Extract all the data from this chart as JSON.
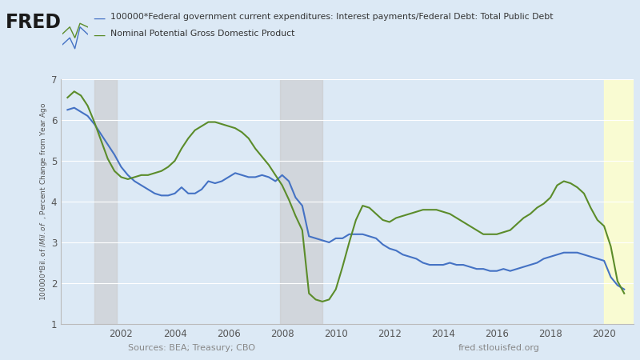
{
  "background_color": "#dce9f5",
  "plot_bg_color": "#dce9f5",
  "shaded_regions": [
    {
      "xmin": 2001.0,
      "xmax": 2001.83,
      "color": "#c8c8c8",
      "alpha": 0.55
    },
    {
      "xmin": 2007.92,
      "xmax": 2009.5,
      "color": "#c8c8c8",
      "alpha": 0.55
    },
    {
      "xmin": 2020.0,
      "xmax": 2021.1,
      "color": "#ffffcc",
      "alpha": 0.85
    }
  ],
  "blue_series": {
    "label": "100000*Federal government current expenditures: Interest payments/Federal Debt: Total Public Debt",
    "color": "#4472c4",
    "x": [
      2000.0,
      2000.25,
      2000.5,
      2000.75,
      2001.0,
      2001.25,
      2001.5,
      2001.75,
      2002.0,
      2002.25,
      2002.5,
      2002.75,
      2003.0,
      2003.25,
      2003.5,
      2003.75,
      2004.0,
      2004.25,
      2004.5,
      2004.75,
      2005.0,
      2005.25,
      2005.5,
      2005.75,
      2006.0,
      2006.25,
      2006.5,
      2006.75,
      2007.0,
      2007.25,
      2007.5,
      2007.75,
      2008.0,
      2008.25,
      2008.5,
      2008.75,
      2009.0,
      2009.25,
      2009.5,
      2009.75,
      2010.0,
      2010.25,
      2010.5,
      2010.75,
      2011.0,
      2011.25,
      2011.5,
      2011.75,
      2012.0,
      2012.25,
      2012.5,
      2012.75,
      2013.0,
      2013.25,
      2013.5,
      2013.75,
      2014.0,
      2014.25,
      2014.5,
      2014.75,
      2015.0,
      2015.25,
      2015.5,
      2015.75,
      2016.0,
      2016.25,
      2016.5,
      2016.75,
      2017.0,
      2017.25,
      2017.5,
      2017.75,
      2018.0,
      2018.25,
      2018.5,
      2018.75,
      2019.0,
      2019.25,
      2019.5,
      2019.75,
      2020.0,
      2020.25,
      2020.5,
      2020.75
    ],
    "y": [
      6.25,
      6.3,
      6.2,
      6.1,
      5.9,
      5.65,
      5.4,
      5.15,
      4.85,
      4.65,
      4.5,
      4.4,
      4.3,
      4.2,
      4.15,
      4.15,
      4.2,
      4.35,
      4.2,
      4.2,
      4.3,
      4.5,
      4.45,
      4.5,
      4.6,
      4.7,
      4.65,
      4.6,
      4.6,
      4.65,
      4.6,
      4.5,
      4.65,
      4.5,
      4.1,
      3.9,
      3.15,
      3.1,
      3.05,
      3.0,
      3.1,
      3.1,
      3.2,
      3.2,
      3.2,
      3.15,
      3.1,
      2.95,
      2.85,
      2.8,
      2.7,
      2.65,
      2.6,
      2.5,
      2.45,
      2.45,
      2.45,
      2.5,
      2.45,
      2.45,
      2.4,
      2.35,
      2.35,
      2.3,
      2.3,
      2.35,
      2.3,
      2.35,
      2.4,
      2.45,
      2.5,
      2.6,
      2.65,
      2.7,
      2.75,
      2.75,
      2.75,
      2.7,
      2.65,
      2.6,
      2.55,
      2.15,
      1.95,
      1.85
    ]
  },
  "green_series": {
    "label": "Nominal Potential Gross Domestic Product",
    "color": "#5b8c2a",
    "x": [
      2000.0,
      2000.25,
      2000.5,
      2000.75,
      2001.0,
      2001.25,
      2001.5,
      2001.75,
      2002.0,
      2002.25,
      2002.5,
      2002.75,
      2003.0,
      2003.25,
      2003.5,
      2003.75,
      2004.0,
      2004.25,
      2004.5,
      2004.75,
      2005.0,
      2005.25,
      2005.5,
      2005.75,
      2006.0,
      2006.25,
      2006.5,
      2006.75,
      2007.0,
      2007.25,
      2007.5,
      2007.75,
      2008.0,
      2008.25,
      2008.5,
      2008.75,
      2009.0,
      2009.25,
      2009.5,
      2009.75,
      2010.0,
      2010.25,
      2010.5,
      2010.75,
      2011.0,
      2011.25,
      2011.5,
      2011.75,
      2012.0,
      2012.25,
      2012.5,
      2012.75,
      2013.0,
      2013.25,
      2013.5,
      2013.75,
      2014.0,
      2014.25,
      2014.5,
      2014.75,
      2015.0,
      2015.25,
      2015.5,
      2015.75,
      2016.0,
      2016.25,
      2016.5,
      2016.75,
      2017.0,
      2017.25,
      2017.5,
      2017.75,
      2018.0,
      2018.25,
      2018.5,
      2018.75,
      2019.0,
      2019.25,
      2019.5,
      2019.75,
      2020.0,
      2020.25,
      2020.5,
      2020.75
    ],
    "y": [
      6.55,
      6.7,
      6.6,
      6.35,
      5.95,
      5.5,
      5.05,
      4.75,
      4.6,
      4.55,
      4.6,
      4.65,
      4.65,
      4.7,
      4.75,
      4.85,
      5.0,
      5.3,
      5.55,
      5.75,
      5.85,
      5.95,
      5.95,
      5.9,
      5.85,
      5.8,
      5.7,
      5.55,
      5.3,
      5.1,
      4.9,
      4.65,
      4.4,
      4.05,
      3.65,
      3.3,
      1.75,
      1.6,
      1.55,
      1.6,
      1.85,
      2.4,
      3.0,
      3.55,
      3.9,
      3.85,
      3.7,
      3.55,
      3.5,
      3.6,
      3.65,
      3.7,
      3.75,
      3.8,
      3.8,
      3.8,
      3.75,
      3.7,
      3.6,
      3.5,
      3.4,
      3.3,
      3.2,
      3.2,
      3.2,
      3.25,
      3.3,
      3.45,
      3.6,
      3.7,
      3.85,
      3.95,
      4.1,
      4.4,
      4.5,
      4.45,
      4.35,
      4.2,
      3.85,
      3.55,
      3.4,
      2.9,
      2.05,
      1.75
    ]
  },
  "ylim": [
    1,
    7
  ],
  "yticks": [
    1,
    2,
    3,
    4,
    5,
    6,
    7
  ],
  "xlim": [
    1999.75,
    2021.1
  ],
  "xticks": [
    2002,
    2004,
    2006,
    2008,
    2010,
    2012,
    2014,
    2016,
    2018,
    2020
  ],
  "ylabel": "100000*Bil. of $/Mil. of $  , Percent Change from Year Ago",
  "source_left": "Sources: BEA; Treasury; CBO",
  "source_right": "fred.stlouisfed.org",
  "grid_color": "#ffffff",
  "grid_alpha": 1.0,
  "header_bg": "#dce9f5",
  "fred_text_color": "#1a1a1a",
  "legend_label_color": "#333333"
}
